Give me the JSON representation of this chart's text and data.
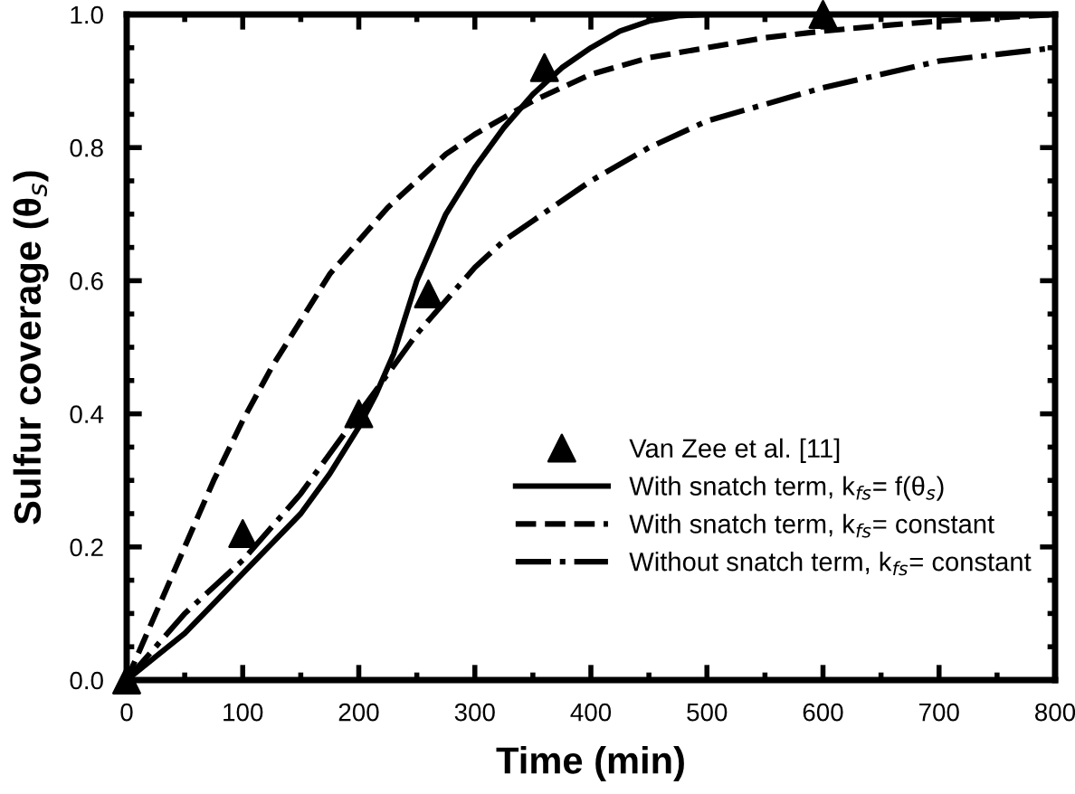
{
  "chart_data": {
    "type": "line",
    "xlabel": "Time (min)",
    "ylabel": "Sulfur coverage (θ$_{s}$)",
    "xlim": [
      0,
      800
    ],
    "ylim": [
      0,
      1.0
    ],
    "xticks": [
      0,
      100,
      200,
      300,
      400,
      500,
      600,
      700,
      800
    ],
    "yticks": [
      {
        "value": 0,
        "label": "0.0"
      },
      0.2,
      0.4,
      0.6,
      0.8,
      {
        "value": 1,
        "label": "1.0"
      }
    ],
    "grid": false,
    "legend": "bottom right",
    "series": [
      {
        "name": "Van Zee et al. [11]",
        "type": "scatter",
        "marker": "triangle",
        "color": "#000000",
        "x": [
          0,
          100,
          200,
          260,
          360,
          600
        ],
        "values": [
          0,
          0.22,
          0.4,
          0.58,
          0.92,
          1.0
        ]
      },
      {
        "name": "With snatch term, k$_{fs}$= f(θ$_{s}$)",
        "line_style": "solid",
        "color": "#000000",
        "x": [
          0,
          25,
          50,
          75,
          100,
          125,
          150,
          175,
          200,
          215,
          230,
          250,
          275,
          300,
          325,
          350,
          375,
          400,
          425,
          450,
          475,
          500,
          600,
          700,
          800
        ],
        "values": [
          0,
          0.035,
          0.07,
          0.115,
          0.16,
          0.205,
          0.25,
          0.31,
          0.38,
          0.43,
          0.49,
          0.6,
          0.7,
          0.77,
          0.83,
          0.88,
          0.92,
          0.95,
          0.975,
          0.99,
          0.998,
          1.0,
          1.0,
          1.0,
          1.0
        ]
      },
      {
        "name": "With snatch term, k$_{fs}$= constant",
        "line_style": "dashed",
        "color": "#000000",
        "x": [
          0,
          25,
          50,
          75,
          100,
          125,
          150,
          175,
          200,
          225,
          250,
          275,
          300,
          325,
          350,
          375,
          400,
          450,
          500,
          550,
          600,
          650,
          700,
          750,
          800
        ],
        "values": [
          0,
          0.1,
          0.2,
          0.3,
          0.39,
          0.47,
          0.54,
          0.61,
          0.66,
          0.71,
          0.75,
          0.79,
          0.82,
          0.845,
          0.87,
          0.89,
          0.91,
          0.935,
          0.95,
          0.965,
          0.975,
          0.983,
          0.99,
          0.995,
          1.0
        ]
      },
      {
        "name": "Without snatch term, k$_{fs}$= constant",
        "line_style": "dashdot",
        "color": "#000000",
        "x": [
          0,
          25,
          50,
          75,
          100,
          125,
          150,
          175,
          200,
          225,
          250,
          275,
          300,
          325,
          350,
          375,
          400,
          450,
          500,
          550,
          600,
          650,
          700,
          750,
          800
        ],
        "values": [
          0,
          0.05,
          0.1,
          0.14,
          0.18,
          0.23,
          0.28,
          0.34,
          0.4,
          0.46,
          0.52,
          0.57,
          0.62,
          0.66,
          0.69,
          0.72,
          0.75,
          0.8,
          0.84,
          0.865,
          0.89,
          0.91,
          0.93,
          0.94,
          0.95
        ]
      }
    ]
  }
}
